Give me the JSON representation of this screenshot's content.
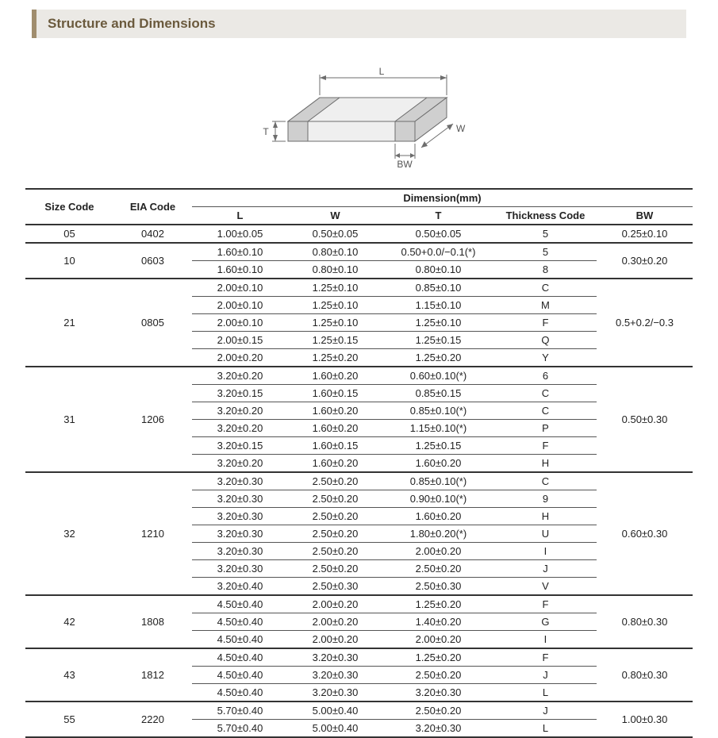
{
  "section_title": "Structure and Dimensions",
  "diagram": {
    "labels": {
      "L": "L",
      "W": "W",
      "T": "T",
      "BW": "BW"
    },
    "stroke": "#6d6d6d",
    "fill": "#efefef",
    "end_fill": "#cfcfcf"
  },
  "table": {
    "headers": {
      "size_code": "Size Code",
      "eia_code": "EIA Code",
      "dimension_group": "Dimension(mm)",
      "L": "L",
      "W": "W",
      "T": "T",
      "thickness_code": "Thickness  Code",
      "BW": "BW"
    },
    "groups": [
      {
        "size": "05",
        "eia": "0402",
        "bw": "0.25±0.10",
        "rows": [
          {
            "L": "1.00±0.05",
            "W": "0.50±0.05",
            "T": "0.50±0.05",
            "th": "5"
          }
        ]
      },
      {
        "size": "10",
        "eia": "0603",
        "bw": "0.30±0.20",
        "rows": [
          {
            "L": "1.60±0.10",
            "W": "0.80±0.10",
            "T": "0.50+0.0/−0.1(*)",
            "th": "5"
          },
          {
            "L": "1.60±0.10",
            "W": "0.80±0.10",
            "T": "0.80±0.10",
            "th": "8"
          }
        ]
      },
      {
        "size": "21",
        "eia": "0805",
        "bw": "0.5+0.2/−0.3",
        "rows": [
          {
            "L": "2.00±0.10",
            "W": "1.25±0.10",
            "T": "0.85±0.10",
            "th": "C"
          },
          {
            "L": "2.00±0.10",
            "W": "1.25±0.10",
            "T": "1.15±0.10",
            "th": "M"
          },
          {
            "L": "2.00±0.10",
            "W": "1.25±0.10",
            "T": "1.25±0.10",
            "th": "F"
          },
          {
            "L": "2.00±0.15",
            "W": "1.25±0.15",
            "T": "1.25±0.15",
            "th": "Q"
          },
          {
            "L": "2.00±0.20",
            "W": "1.25±0.20",
            "T": "1.25±0.20",
            "th": "Y"
          }
        ]
      },
      {
        "size": "31",
        "eia": "1206",
        "bw": "0.50±0.30",
        "rows": [
          {
            "L": "3.20±0.20",
            "W": "1.60±0.20",
            "T": "0.60±0.10(*)",
            "th": "6"
          },
          {
            "L": "3.20±0.15",
            "W": "1.60±0.15",
            "T": "0.85±0.15",
            "th": "C"
          },
          {
            "L": "3.20±0.20",
            "W": "1.60±0.20",
            "T": "0.85±0.10(*)",
            "th": "C"
          },
          {
            "L": "3.20±0.20",
            "W": "1.60±0.20",
            "T": "1.15±0.10(*)",
            "th": "P"
          },
          {
            "L": "3.20±0.15",
            "W": "1.60±0.15",
            "T": "1.25±0.15",
            "th": "F"
          },
          {
            "L": "3.20±0.20",
            "W": "1.60±0.20",
            "T": "1.60±0.20",
            "th": "H"
          }
        ]
      },
      {
        "size": "32",
        "eia": "1210",
        "bw": "0.60±0.30",
        "rows": [
          {
            "L": "3.20±0.30",
            "W": "2.50±0.20",
            "T": "0.85±0.10(*)",
            "th": "C"
          },
          {
            "L": "3.20±0.30",
            "W": "2.50±0.20",
            "T": "0.90±0.10(*)",
            "th": "9"
          },
          {
            "L": "3.20±0.30",
            "W": "2.50±0.20",
            "T": "1.60±0.20",
            "th": "H"
          },
          {
            "L": "3.20±0.30",
            "W": "2.50±0.20",
            "T": "1.80±0.20(*)",
            "th": "U"
          },
          {
            "L": "3.20±0.30",
            "W": "2.50±0.20",
            "T": "2.00±0.20",
            "th": "I"
          },
          {
            "L": "3.20±0.30",
            "W": "2.50±0.20",
            "T": "2.50±0.20",
            "th": "J"
          },
          {
            "L": "3.20±0.40",
            "W": "2.50±0.30",
            "T": "2.50±0.30",
            "th": "V"
          }
        ]
      },
      {
        "size": "42",
        "eia": "1808",
        "bw": "0.80±0.30",
        "rows": [
          {
            "L": "4.50±0.40",
            "W": "2.00±0.20",
            "T": "1.25±0.20",
            "th": "F"
          },
          {
            "L": "4.50±0.40",
            "W": "2.00±0.20",
            "T": "1.40±0.20",
            "th": "G"
          },
          {
            "L": "4.50±0.40",
            "W": "2.00±0.20",
            "T": "2.00±0.20",
            "th": "I"
          }
        ]
      },
      {
        "size": "43",
        "eia": "1812",
        "bw": "0.80±0.30",
        "rows": [
          {
            "L": "4.50±0.40",
            "W": "3.20±0.30",
            "T": "1.25±0.20",
            "th": "F"
          },
          {
            "L": "4.50±0.40",
            "W": "3.20±0.30",
            "T": "2.50±0.20",
            "th": "J"
          },
          {
            "L": "4.50±0.40",
            "W": "3.20±0.30",
            "T": "3.20±0.30",
            "th": "L"
          }
        ]
      },
      {
        "size": "55",
        "eia": "2220",
        "bw": "1.00±0.30",
        "rows": [
          {
            "L": "5.70±0.40",
            "W": "5.00±0.40",
            "T": "2.50±0.20",
            "th": "J"
          },
          {
            "L": "5.70±0.40",
            "W": "5.00±0.40",
            "T": "3.20±0.30",
            "th": "L"
          }
        ]
      }
    ]
  },
  "colors": {
    "header_bg": "#ebe9e5",
    "header_accent": "#a08d6e",
    "header_text": "#6b5a3d",
    "rule_thick": "#333333",
    "rule_thin": "#555555",
    "text": "#222222"
  }
}
